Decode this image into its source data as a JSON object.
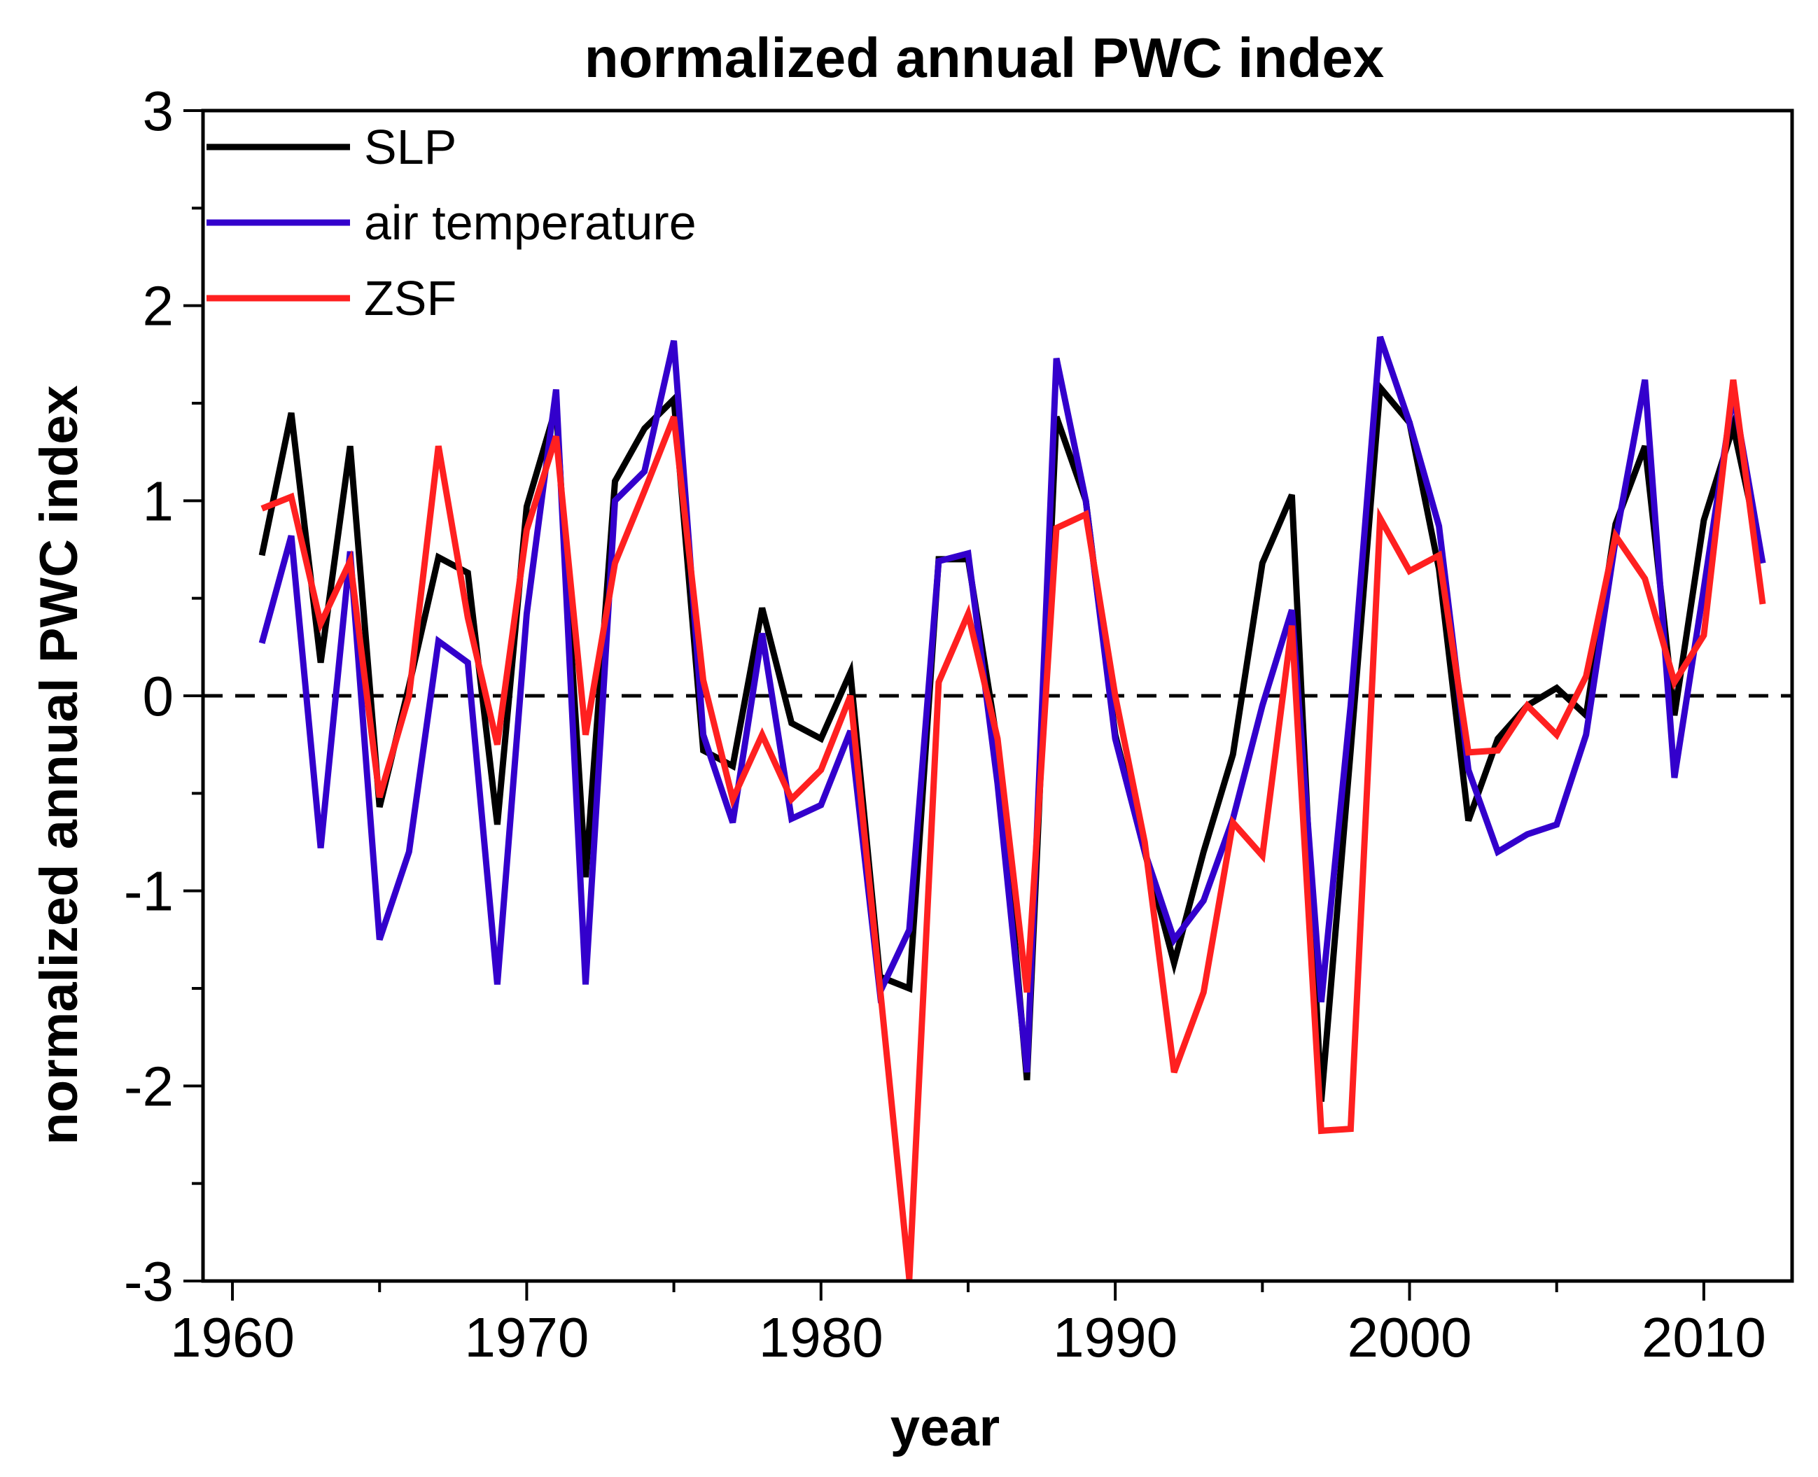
{
  "chart_data": {
    "type": "line",
    "title": "normalized annual PWC index",
    "xlabel": "year",
    "ylabel": "normalized annual PWC index",
    "xlim": [
      1959,
      2013
    ],
    "ylim": [
      -3,
      3
    ],
    "xticks": [
      1960,
      1970,
      1980,
      1990,
      2000,
      2010
    ],
    "yticks": [
      -3,
      -2,
      -1,
      0,
      1,
      2,
      3
    ],
    "grid": false,
    "reference_line": {
      "y": 0,
      "style": "dashed"
    },
    "legend": {
      "position": "top-left"
    },
    "x": [
      1961,
      1962,
      1963,
      1964,
      1965,
      1966,
      1967,
      1968,
      1969,
      1970,
      1971,
      1972,
      1973,
      1974,
      1975,
      1976,
      1977,
      1978,
      1979,
      1980,
      1981,
      1982,
      1983,
      1984,
      1985,
      1986,
      1987,
      1988,
      1989,
      1990,
      1991,
      1992,
      1993,
      1994,
      1995,
      1996,
      1997,
      1998,
      1999,
      2000,
      2001,
      2002,
      2003,
      2004,
      2005,
      2006,
      2007,
      2008,
      2009,
      2010,
      2011,
      2012
    ],
    "series": [
      {
        "name": "SLP",
        "color": "#000000",
        "values": [
          0.72,
          1.45,
          0.17,
          1.28,
          -0.57,
          0.05,
          0.71,
          0.63,
          -0.66,
          0.97,
          1.48,
          -0.93,
          1.1,
          1.37,
          1.52,
          -0.28,
          -0.36,
          0.45,
          -0.14,
          -0.22,
          0.12,
          -1.44,
          -1.5,
          0.7,
          0.7,
          -0.25,
          -1.97,
          1.43,
          1.0,
          -0.2,
          -0.8,
          -1.37,
          -0.8,
          -0.3,
          0.68,
          1.03,
          -2.08,
          -0.28,
          1.58,
          1.4,
          0.65,
          -0.64,
          -0.22,
          -0.05,
          0.04,
          -0.1,
          0.88,
          1.28,
          -0.1,
          0.9,
          1.38,
          0.68
        ]
      },
      {
        "name": "air temperature",
        "color": "#3300cc",
        "values": [
          0.27,
          0.82,
          -0.78,
          0.74,
          -1.25,
          -0.8,
          0.28,
          0.17,
          -1.48,
          0.42,
          1.57,
          -1.48,
          1.0,
          1.15,
          1.82,
          -0.2,
          -0.65,
          0.32,
          -0.63,
          -0.56,
          -0.18,
          -1.52,
          -1.2,
          0.69,
          0.73,
          -0.45,
          -1.93,
          1.73,
          1.0,
          -0.22,
          -0.8,
          -1.25,
          -1.05,
          -0.63,
          -0.05,
          0.44,
          -1.57,
          -0.05,
          1.84,
          1.4,
          0.87,
          -0.38,
          -0.8,
          -0.71,
          -0.66,
          -0.2,
          0.8,
          1.62,
          -0.42,
          0.55,
          1.55,
          0.68
        ]
      },
      {
        "name": "ZSF",
        "color": "#ff2020",
        "values": [
          0.96,
          1.02,
          0.37,
          0.69,
          -0.52,
          0.0,
          1.28,
          0.4,
          -0.25,
          0.85,
          1.33,
          -0.2,
          0.68,
          1.05,
          1.43,
          0.08,
          -0.53,
          -0.2,
          -0.53,
          -0.38,
          0.0,
          -1.49,
          -2.99,
          0.07,
          0.42,
          -0.22,
          -1.52,
          0.86,
          0.93,
          0.0,
          -0.75,
          -1.93,
          -1.52,
          -0.65,
          -0.82,
          0.36,
          -2.23,
          -2.22,
          0.91,
          0.64,
          0.72,
          -0.29,
          -0.28,
          -0.05,
          -0.2,
          0.1,
          0.82,
          0.6,
          0.07,
          0.31,
          1.62,
          0.47
        ]
      }
    ]
  }
}
